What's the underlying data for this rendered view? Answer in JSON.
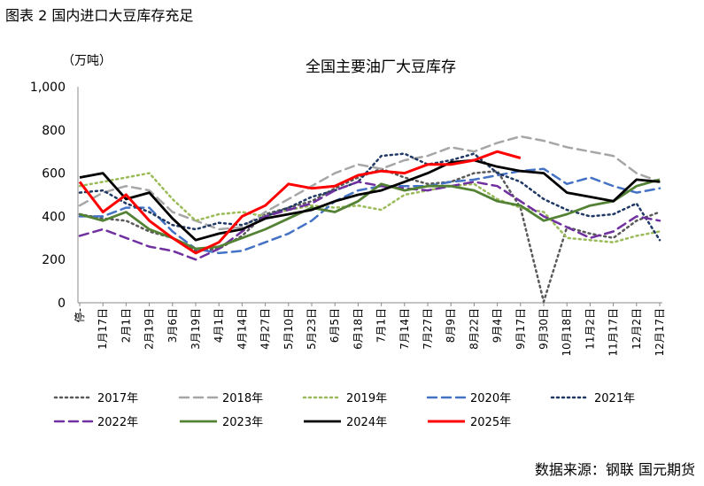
{
  "figure_title": "图表 2 国内进口大豆库存充足",
  "source": "数据来源：钢联 国元期货",
  "chart_data": {
    "type": "line",
    "title": "全国主要油厂大豆库存",
    "ylabel": "（万吨）",
    "xlabel": "",
    "ylim": [
      0,
      1000
    ],
    "yticks": [
      "0",
      "200",
      "400",
      "600",
      "800",
      "1,000"
    ],
    "categories": [
      "停-",
      "1月17日",
      "2月1日",
      "2月19日",
      "3月6日",
      "3月19日",
      "4月1日",
      "4月14日",
      "4月27日",
      "5月10日",
      "5月23日",
      "6月5日",
      "6月18日",
      "7月1日",
      "7月14日",
      "7月27日",
      "8月9日",
      "8月22日",
      "9月4日",
      "9月17日",
      "9月30日",
      "10月18日",
      "11月2日",
      "11月17日",
      "12月2日",
      "12月17日"
    ],
    "series": [
      {
        "name": "2017年",
        "color": "#595959",
        "dash": "2,4",
        "width": 2.5,
        "x": [
          0,
          1,
          2,
          3,
          4,
          5,
          6,
          7,
          8,
          9,
          10,
          11,
          12,
          13,
          14,
          15,
          16,
          17,
          18,
          19,
          20,
          21,
          22,
          23,
          24,
          25
        ],
        "values": [
          410,
          390,
          380,
          330,
          300,
          240,
          250,
          310,
          410,
          440,
          470,
          530,
          580,
          620,
          580,
          550,
          560,
          600,
          610,
          440,
          5,
          350,
          320,
          300,
          380,
          420
        ]
      },
      {
        "name": "2018年",
        "color": "#a6a6a6",
        "dash": "10,6",
        "width": 2.5,
        "x": [
          0,
          1,
          2,
          3,
          4,
          5,
          6,
          7,
          8,
          9,
          10,
          11,
          12,
          13,
          14,
          15,
          16,
          17,
          18,
          19,
          20,
          21,
          22,
          23,
          24,
          25
        ],
        "values": [
          450,
          510,
          540,
          520,
          420,
          380,
          340,
          350,
          420,
          480,
          540,
          600,
          640,
          620,
          660,
          680,
          720,
          700,
          740,
          770,
          750,
          720,
          700,
          680,
          600,
          560
        ]
      },
      {
        "name": "2019年",
        "color": "#9bbb59",
        "dash": "2,4",
        "width": 2.5,
        "x": [
          0,
          1,
          2,
          3,
          4,
          5,
          6,
          7,
          8,
          9,
          10,
          11,
          12,
          13,
          14,
          15,
          16,
          17,
          18,
          19,
          20,
          21,
          22,
          23,
          24,
          25
        ],
        "values": [
          540,
          560,
          580,
          600,
          480,
          380,
          410,
          420,
          400,
          430,
          450,
          440,
          450,
          430,
          500,
          520,
          540,
          550,
          480,
          440,
          420,
          300,
          290,
          280,
          310,
          330
        ]
      },
      {
        "name": "2020年",
        "color": "#4472c4",
        "dash": "10,6",
        "width": 2.5,
        "x": [
          0,
          1,
          2,
          3,
          4,
          5,
          6,
          7,
          8,
          9,
          10,
          11,
          12,
          13,
          14,
          15,
          16,
          17,
          18,
          19,
          20,
          21,
          22,
          23,
          24,
          25
        ],
        "values": [
          400,
          400,
          440,
          440,
          330,
          250,
          230,
          240,
          280,
          320,
          380,
          470,
          520,
          540,
          540,
          540,
          560,
          570,
          590,
          610,
          620,
          550,
          580,
          540,
          510,
          530
        ]
      },
      {
        "name": "2021年",
        "color": "#1f3864",
        "dash": "2,4",
        "width": 2.5,
        "x": [
          0,
          1,
          2,
          3,
          4,
          5,
          6,
          7,
          8,
          9,
          10,
          11,
          12,
          13,
          14,
          15,
          16,
          17,
          18,
          19,
          20,
          21,
          22,
          23,
          24,
          25
        ],
        "values": [
          510,
          520,
          460,
          420,
          360,
          340,
          370,
          360,
          400,
          440,
          490,
          520,
          560,
          680,
          690,
          640,
          660,
          690,
          600,
          560,
          480,
          430,
          400,
          410,
          460,
          290
        ]
      },
      {
        "name": "2022年",
        "color": "#7030a0",
        "dash": "10,6",
        "width": 2.5,
        "x": [
          0,
          1,
          2,
          3,
          4,
          5,
          6,
          7,
          8,
          9,
          10,
          11,
          12,
          13,
          14,
          15,
          16,
          17,
          18,
          19,
          20,
          21,
          22,
          23,
          24,
          25
        ],
        "values": [
          310,
          340,
          300,
          260,
          240,
          200,
          250,
          330,
          400,
          430,
          460,
          520,
          560,
          540,
          530,
          520,
          540,
          560,
          540,
          470,
          400,
          350,
          300,
          330,
          400,
          380
        ]
      },
      {
        "name": "2023年",
        "color": "#548235",
        "dash": "",
        "width": 2.8,
        "x": [
          0,
          1,
          2,
          3,
          4,
          5,
          6,
          7,
          8,
          9,
          10,
          11,
          12,
          13,
          14,
          15,
          16,
          17,
          18,
          19,
          20,
          21,
          22,
          23,
          24,
          25
        ],
        "values": [
          410,
          380,
          420,
          340,
          300,
          250,
          260,
          300,
          340,
          390,
          440,
          420,
          470,
          550,
          520,
          540,
          540,
          520,
          470,
          450,
          380,
          410,
          450,
          470,
          540,
          570
        ]
      },
      {
        "name": "2024年",
        "color": "#000000",
        "dash": "",
        "width": 2.8,
        "x": [
          0,
          1,
          2,
          3,
          4,
          5,
          6,
          7,
          8,
          9,
          10,
          11,
          12,
          13,
          14,
          15,
          16,
          17,
          18,
          19,
          20,
          21,
          22,
          23,
          24,
          25
        ],
        "values": [
          580,
          600,
          480,
          510,
          390,
          290,
          320,
          340,
          390,
          410,
          430,
          470,
          500,
          520,
          560,
          600,
          650,
          660,
          630,
          610,
          600,
          510,
          490,
          470,
          570,
          560
        ]
      },
      {
        "name": "2025年",
        "color": "#ff0000",
        "dash": "",
        "width": 3,
        "x": [
          0,
          1,
          2,
          3,
          4,
          5,
          6,
          7,
          8,
          9,
          10,
          11,
          12,
          13,
          14,
          15,
          16,
          17,
          18,
          19
        ],
        "values": [
          560,
          420,
          500,
          380,
          300,
          230,
          280,
          400,
          450,
          550,
          530,
          540,
          590,
          610,
          600,
          640,
          640,
          660,
          700,
          670
        ]
      }
    ],
    "legend": [
      [
        "2017年",
        "2018年",
        "2019年",
        "2020年",
        "2021年"
      ],
      [
        "2022年",
        "2023年",
        "2024年",
        "2025年"
      ]
    ]
  }
}
